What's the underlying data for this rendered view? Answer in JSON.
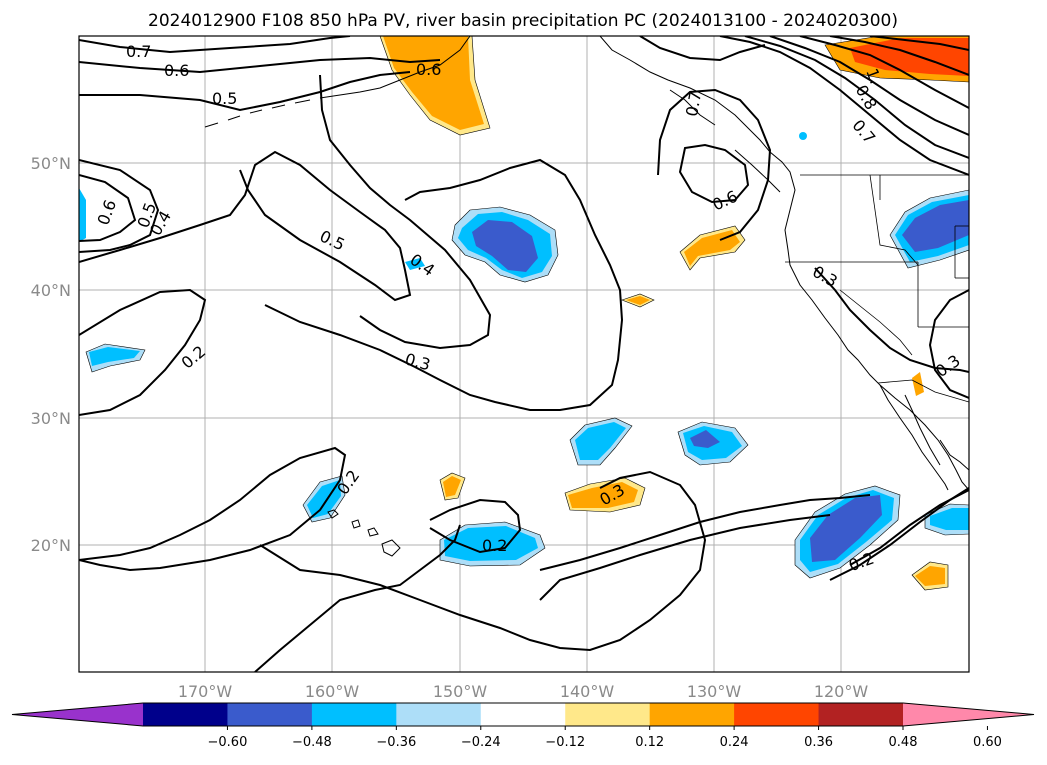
{
  "title": "2024012900 F108 850 hPa PV, river basin precipitation PC (2024013100 - 2024020300)",
  "lat_labels": [
    "50°N",
    "40°N",
    "30°N",
    "20°N"
  ],
  "lon_labels": [
    "170°W",
    "160°W",
    "150°W",
    "140°W",
    "130°W",
    "120°W"
  ],
  "contour_labels": {
    "c07a": "0.7",
    "c06a": "0.6",
    "c05a": "0.5",
    "c06b": "0.6",
    "c05b": "0.5",
    "c04a": "0.4",
    "c05c": "0.5",
    "c04b": "0.4",
    "c02a": "0.2",
    "c03a": "0.3",
    "c06c": "0.6",
    "c07b": "0.7",
    "c06d": "0.6",
    "c03b": "0.3",
    "c03c": "0.3",
    "c02b": "0.2",
    "c02c": "0.2",
    "c03d": "0.3",
    "c02d": "0.2",
    "c1a": "1.",
    "c08a": "0.8",
    "c07c": "0.7"
  },
  "colorbar": {
    "ticks": [
      "−0.60",
      "−0.48",
      "−0.36",
      "−0.24",
      "−0.12",
      "0.12",
      "0.24",
      "0.36",
      "0.48",
      "0.60"
    ],
    "colors": [
      "#9932CC",
      "#00008B",
      "#3A5BCC",
      "#00BFFF",
      "#ADDEF8",
      "#FFFFFF",
      "#FFE88A",
      "#FFA500",
      "#FF4500",
      "#B22222",
      "#FF88AA"
    ]
  }
}
